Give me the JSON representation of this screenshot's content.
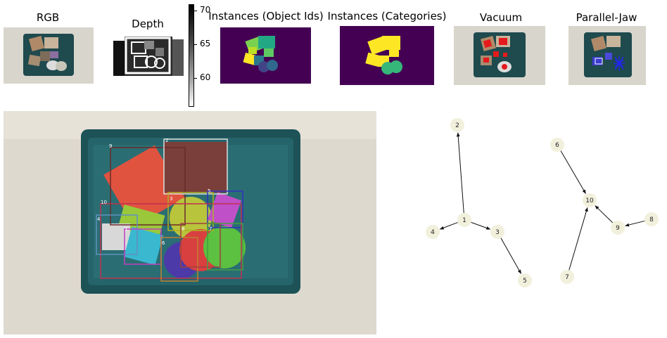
{
  "titles": {
    "rgb": "RGB",
    "depth": "Depth",
    "instances_ids": "Instances (Object Ids)",
    "instances_cat": "Instances (Categories)",
    "vacuum": "Vacuum",
    "parallel_jaw": "Parallel-Jaw"
  },
  "colorbar": {
    "ticks": [
      "70",
      "65",
      "60"
    ]
  },
  "scene": {
    "box_labels": [
      "9",
      "3",
      "5",
      "10",
      "4",
      "1",
      "6",
      "8",
      "7",
      "2"
    ]
  },
  "graph": {
    "nodes": [
      "1",
      "2",
      "3",
      "4",
      "5",
      "6",
      "7",
      "8",
      "9",
      "10"
    ],
    "edges": [
      [
        "1",
        "2"
      ],
      [
        "1",
        "4"
      ],
      [
        "1",
        "3"
      ],
      [
        "3",
        "5"
      ],
      [
        "6",
        "10"
      ],
      [
        "7",
        "10"
      ],
      [
        "9",
        "10"
      ],
      [
        "8",
        "9"
      ]
    ]
  },
  "colors": {
    "node_fill": "#f1f0dc",
    "instances_bg": "#440154",
    "category_fill": "#fde725"
  }
}
